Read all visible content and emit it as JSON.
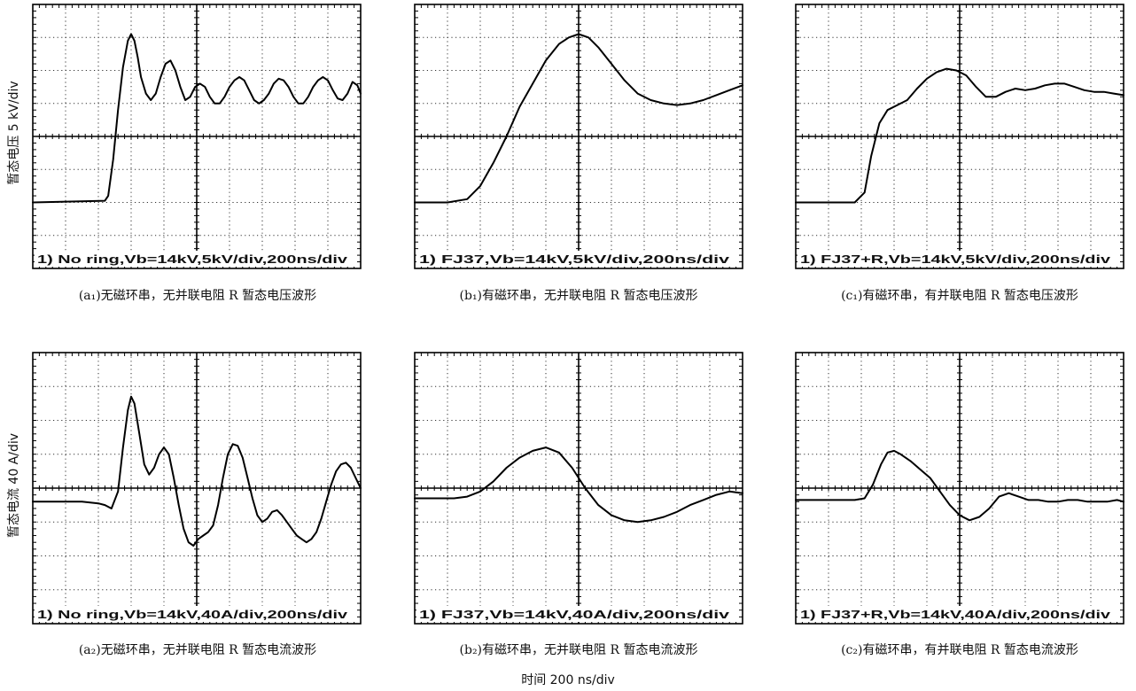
{
  "figure": {
    "y_label_voltage": "暂态电压  5 kV/div",
    "y_label_current": "暂态电流  40 A/div",
    "x_label": "时间  200 ns/div"
  },
  "chart_data": [
    {
      "type": "line",
      "label": "1) No ring,Vb=14kV,5kV/div,200ns/div",
      "caption": "(a₁)无磁环串，无并联电阻 R 暂态电压波形",
      "x_unit": "div",
      "y_unit": "div",
      "xlim": [
        0,
        10
      ],
      "ylim": [
        0,
        8
      ],
      "x": [
        0,
        2.2,
        2.3,
        2.45,
        2.6,
        2.75,
        2.9,
        3.0,
        3.1,
        3.2,
        3.3,
        3.45,
        3.6,
        3.75,
        3.9,
        4.05,
        4.2,
        4.35,
        4.5,
        4.65,
        4.8,
        4.95,
        5.1,
        5.25,
        5.4,
        5.55,
        5.7,
        5.85,
        6.0,
        6.15,
        6.3,
        6.45,
        6.6,
        6.75,
        6.9,
        7.05,
        7.2,
        7.35,
        7.5,
        7.65,
        7.8,
        7.95,
        8.1,
        8.25,
        8.4,
        8.55,
        8.7,
        8.85,
        9.0,
        9.15,
        9.3,
        9.45,
        9.6,
        9.75,
        9.9,
        10.0
      ],
      "y": [
        2.0,
        2.05,
        2.2,
        3.3,
        4.8,
        6.1,
        6.9,
        7.1,
        6.9,
        6.4,
        5.8,
        5.3,
        5.1,
        5.3,
        5.8,
        6.2,
        6.3,
        6.0,
        5.5,
        5.1,
        5.2,
        5.5,
        5.6,
        5.5,
        5.2,
        5.0,
        5.0,
        5.2,
        5.5,
        5.7,
        5.8,
        5.7,
        5.4,
        5.1,
        5.0,
        5.1,
        5.3,
        5.6,
        5.75,
        5.7,
        5.5,
        5.2,
        5.0,
        5.0,
        5.2,
        5.5,
        5.7,
        5.8,
        5.7,
        5.4,
        5.15,
        5.1,
        5.3,
        5.65,
        5.55,
        5.3
      ]
    },
    {
      "type": "line",
      "label": "1) FJ37,Vb=14kV,5kV/div,200ns/div",
      "caption": "(b₁)有磁环串，无并联电阻 R 暂态电压波形",
      "x_unit": "div",
      "y_unit": "div",
      "xlim": [
        0,
        10
      ],
      "ylim": [
        0,
        8
      ],
      "x": [
        0,
        1.0,
        1.6,
        2.0,
        2.4,
        2.8,
        3.2,
        3.6,
        4.0,
        4.4,
        4.7,
        5.0,
        5.3,
        5.6,
        6.0,
        6.4,
        6.8,
        7.2,
        7.6,
        8.0,
        8.4,
        8.8,
        9.2,
        9.6,
        10.0
      ],
      "y": [
        2.0,
        2.0,
        2.1,
        2.5,
        3.2,
        4.0,
        4.9,
        5.6,
        6.3,
        6.8,
        7.0,
        7.1,
        7.0,
        6.7,
        6.2,
        5.7,
        5.3,
        5.1,
        5.0,
        4.95,
        5.0,
        5.1,
        5.25,
        5.4,
        5.55
      ]
    },
    {
      "type": "line",
      "label": "1) FJ37+R,Vb=14kV,5kV/div,200ns/div",
      "caption": "(c₁)有磁环串，有并联电阻 R 暂态电压波形",
      "x_unit": "div",
      "y_unit": "div",
      "xlim": [
        0,
        10
      ],
      "ylim": [
        0,
        8
      ],
      "x": [
        0,
        1.8,
        2.1,
        2.3,
        2.55,
        2.8,
        3.1,
        3.4,
        3.7,
        4.0,
        4.3,
        4.6,
        4.9,
        5.2,
        5.5,
        5.8,
        6.1,
        6.4,
        6.7,
        7.0,
        7.3,
        7.6,
        7.9,
        8.2,
        8.5,
        8.8,
        9.1,
        9.4,
        9.7,
        10.0
      ],
      "y": [
        2.0,
        2.0,
        2.3,
        3.4,
        4.4,
        4.8,
        4.95,
        5.1,
        5.45,
        5.75,
        5.95,
        6.05,
        6.0,
        5.85,
        5.5,
        5.2,
        5.2,
        5.35,
        5.45,
        5.4,
        5.45,
        5.55,
        5.6,
        5.6,
        5.5,
        5.4,
        5.35,
        5.35,
        5.3,
        5.25
      ]
    },
    {
      "type": "line",
      "label": "1) No ring,Vb=14kV,40A/div,200ns/div",
      "caption": "(a₂)无磁环串，无并联电阻 R 暂态电流波形",
      "x_unit": "div",
      "y_unit": "div",
      "xlim": [
        0,
        10
      ],
      "ylim": [
        0,
        8
      ],
      "x": [
        0,
        1.5,
        2.0,
        2.2,
        2.4,
        2.6,
        2.75,
        2.9,
        3.0,
        3.1,
        3.25,
        3.4,
        3.55,
        3.7,
        3.85,
        4.0,
        4.15,
        4.3,
        4.45,
        4.6,
        4.75,
        4.9,
        5.05,
        5.2,
        5.35,
        5.5,
        5.65,
        5.8,
        5.95,
        6.1,
        6.25,
        6.4,
        6.55,
        6.7,
        6.85,
        7.0,
        7.15,
        7.3,
        7.45,
        7.6,
        7.75,
        7.9,
        8.05,
        8.2,
        8.35,
        8.5,
        8.65,
        8.8,
        8.95,
        9.1,
        9.25,
        9.4,
        9.55,
        9.7,
        9.85,
        10.0
      ],
      "y": [
        3.6,
        3.6,
        3.55,
        3.5,
        3.4,
        3.9,
        5.2,
        6.3,
        6.7,
        6.5,
        5.6,
        4.7,
        4.4,
        4.6,
        5.0,
        5.2,
        5.0,
        4.3,
        3.5,
        2.8,
        2.4,
        2.3,
        2.5,
        2.6,
        2.7,
        2.9,
        3.5,
        4.3,
        5.0,
        5.3,
        5.25,
        4.9,
        4.3,
        3.7,
        3.2,
        3.0,
        3.1,
        3.3,
        3.35,
        3.2,
        3.0,
        2.8,
        2.6,
        2.5,
        2.4,
        2.5,
        2.7,
        3.1,
        3.6,
        4.1,
        4.5,
        4.7,
        4.75,
        4.6,
        4.3,
        4.0
      ]
    },
    {
      "type": "line",
      "label": "1) FJ37,Vb=14kV,40A/div,200ns/div",
      "caption": "(b₂)有磁环串，无并联电阻 R 暂态电流波形",
      "x_unit": "div",
      "y_unit": "div",
      "xlim": [
        0,
        10
      ],
      "ylim": [
        0,
        8
      ],
      "x": [
        0,
        1.2,
        1.6,
        2.0,
        2.4,
        2.8,
        3.2,
        3.6,
        4.0,
        4.4,
        4.8,
        5.0,
        5.2,
        5.6,
        6.0,
        6.4,
        6.8,
        7.2,
        7.6,
        8.0,
        8.4,
        8.8,
        9.2,
        9.6,
        10.0
      ],
      "y": [
        3.7,
        3.7,
        3.75,
        3.9,
        4.2,
        4.6,
        4.9,
        5.1,
        5.2,
        5.05,
        4.6,
        4.3,
        4.0,
        3.5,
        3.2,
        3.05,
        3.0,
        3.05,
        3.15,
        3.3,
        3.5,
        3.65,
        3.8,
        3.9,
        3.85
      ]
    },
    {
      "type": "line",
      "label": "1) FJ37+R,Vb=14kV,40A/div,200ns/div",
      "caption": "(c₂)有磁环串，有并联电阻 R 暂态电流波形",
      "x_unit": "div",
      "y_unit": "div",
      "xlim": [
        0,
        10
      ],
      "ylim": [
        0,
        8
      ],
      "x": [
        0,
        1.8,
        2.1,
        2.35,
        2.6,
        2.8,
        3.0,
        3.2,
        3.5,
        3.8,
        4.1,
        4.4,
        4.7,
        5.0,
        5.3,
        5.6,
        5.9,
        6.2,
        6.5,
        6.8,
        7.1,
        7.4,
        7.7,
        8.0,
        8.3,
        8.6,
        8.9,
        9.2,
        9.5,
        9.8,
        10.0
      ],
      "y": [
        3.65,
        3.65,
        3.7,
        4.1,
        4.7,
        5.05,
        5.1,
        5.0,
        4.8,
        4.55,
        4.3,
        3.9,
        3.5,
        3.2,
        3.05,
        3.15,
        3.4,
        3.75,
        3.85,
        3.75,
        3.65,
        3.65,
        3.6,
        3.6,
        3.65,
        3.65,
        3.6,
        3.6,
        3.6,
        3.65,
        3.6
      ]
    }
  ]
}
